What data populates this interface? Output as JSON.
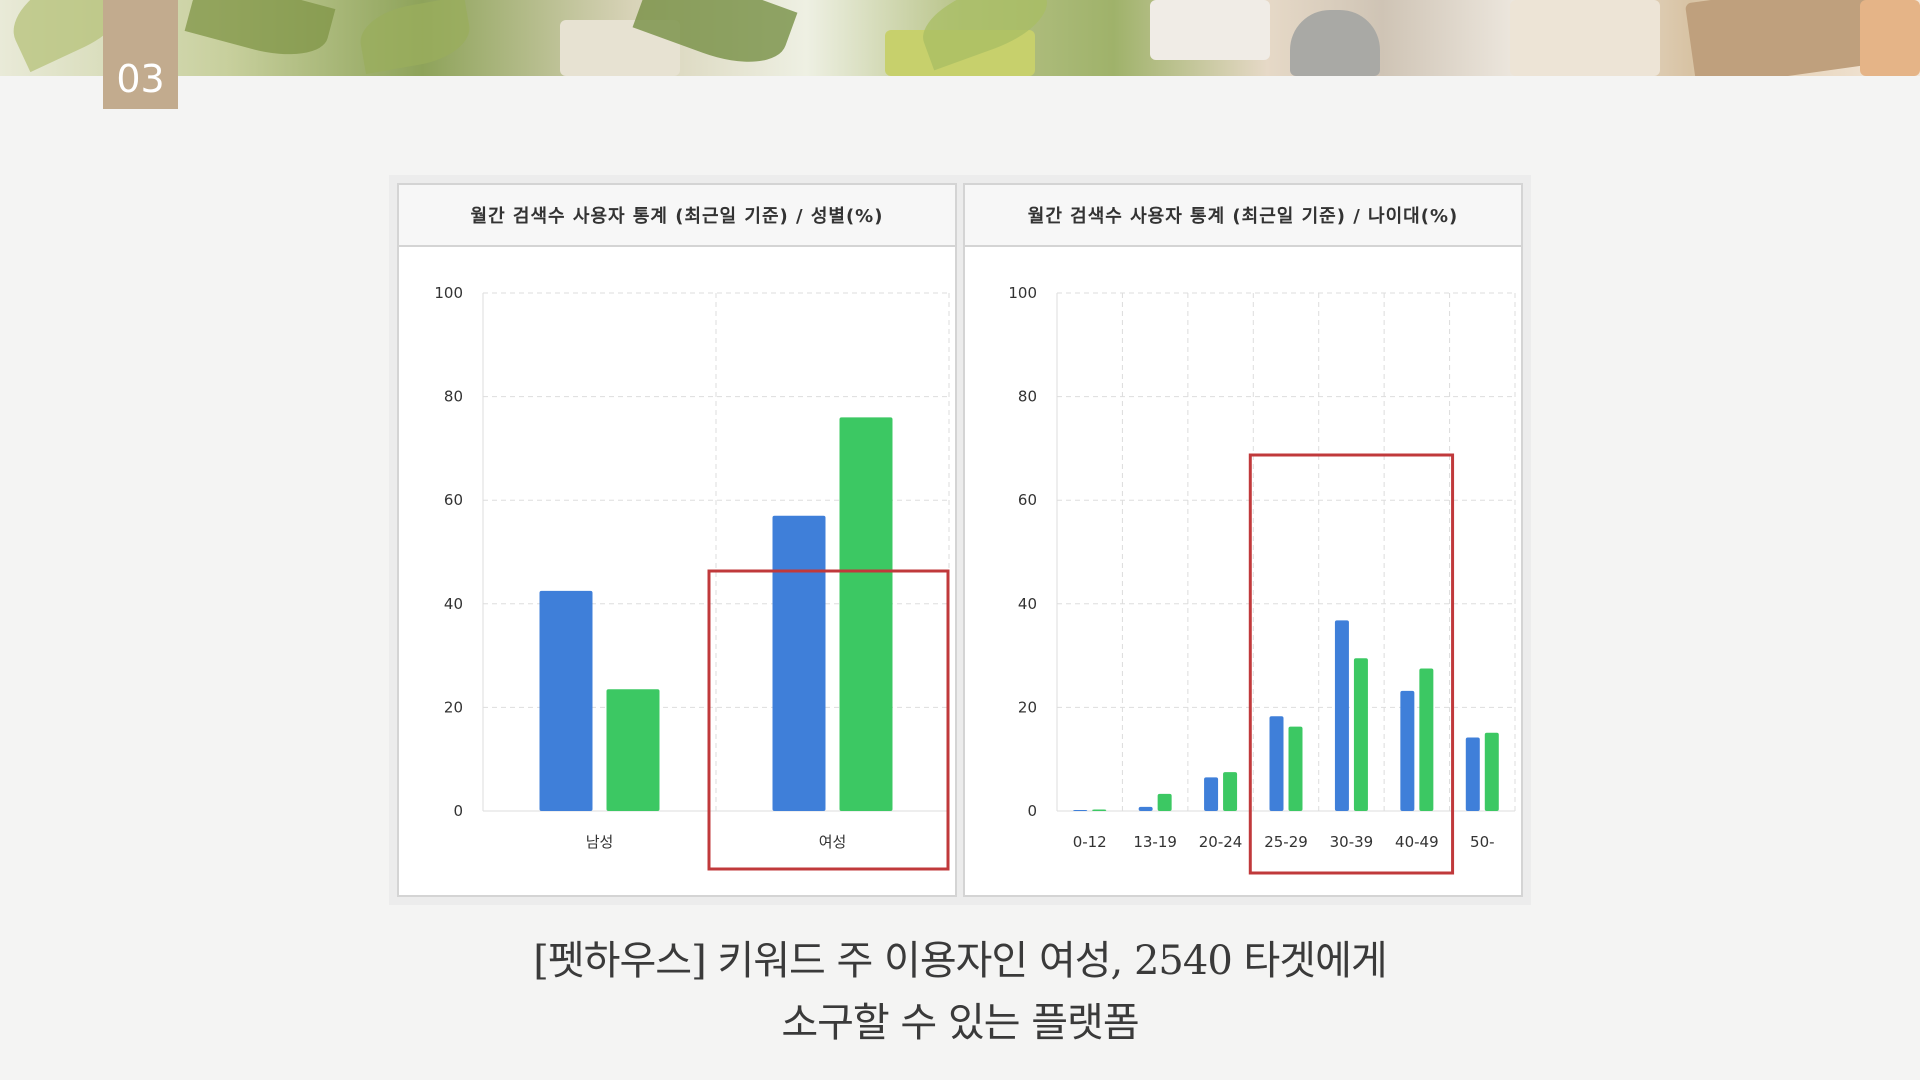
{
  "slide_number": "03",
  "caption": {
    "line1": "[펫하우스] 키워드 주 이용자인 여성, 2540 타겟에게",
    "line2": "소구할 수 있는 플랫폼"
  },
  "colors": {
    "series_a": "#3f7fd9",
    "series_b": "#3cc863",
    "highlight": "#c0393b",
    "grid": "#dddddd"
  },
  "chart_data": [
    {
      "type": "bar",
      "title": "월간 검색수 사용자 통계 (최근일 기준) / 성별(%)",
      "categories": [
        "남성",
        "여성"
      ],
      "series": [
        {
          "values": [
            42.5,
            57
          ]
        },
        {
          "values": [
            23.5,
            76
          ]
        }
      ],
      "ylim": [
        0,
        100
      ],
      "yticks": [
        0,
        20,
        40,
        60,
        80,
        100
      ],
      "grid": true,
      "highlight_categories": [
        "여성"
      ]
    },
    {
      "type": "bar",
      "title": "월간 검색수 사용자 통계 (최근일 기준) / 나이대(%)",
      "categories": [
        "0-12",
        "13-19",
        "20-24",
        "25-29",
        "30-39",
        "40-49",
        "50-"
      ],
      "series": [
        {
          "values": [
            0.2,
            0.8,
            6.5,
            18.3,
            36.8,
            23.2,
            14.2
          ]
        },
        {
          "values": [
            0.3,
            3.3,
            7.5,
            16.3,
            29.5,
            27.5,
            15.1
          ]
        }
      ],
      "ylim": [
        0,
        100
      ],
      "yticks": [
        0,
        20,
        40,
        60,
        80,
        100
      ],
      "grid": true,
      "highlight_categories": [
        "25-29",
        "30-39",
        "40-49"
      ]
    }
  ]
}
